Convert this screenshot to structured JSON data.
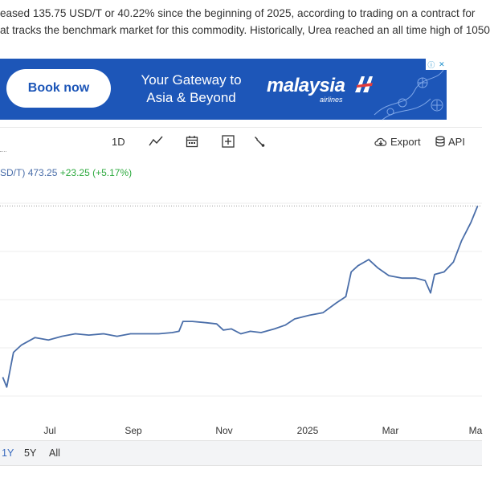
{
  "article": {
    "line1": "eased 135.75 USD/T or 40.22% since the beginning of 2025, according to trading on a contract for",
    "line2": "at tracks the benchmark market for this commodity. Historically, Urea reached an all time high of 1050"
  },
  "ad": {
    "button_label": "Book now",
    "tagline_line1": "Your Gateway to",
    "tagline_line2": "Asia & Beyond",
    "brand": "malaysia",
    "brand_sub": "airlines",
    "adchoices_icon": "info-close-icon",
    "colors": {
      "background": "#1d56b8",
      "button": "#ffffff"
    }
  },
  "toolbar": {
    "interval_label": "1D",
    "line_chart_icon": "line-chart-icon",
    "calendar_icon": "calendar-icon",
    "add_icon": "plus-box-icon",
    "settings_icon": "wrench-icon",
    "export_label": "Export",
    "api_label": "API"
  },
  "legend": {
    "symbol": "SD/T)",
    "last": "473.25",
    "change": "+23.25 (+5.17%)",
    "colors": {
      "line": "#4a6ea9",
      "positive": "#2eaa3f"
    }
  },
  "chart_data": {
    "type": "line",
    "x_tick_labels": [
      "Jul",
      "Sep",
      "Nov",
      "2025",
      "Mar",
      "Ma"
    ],
    "series": [
      {
        "color": "#4a6ea9",
        "points": [
          [
            "2024-05-22",
            335
          ],
          [
            "2024-05-25",
            327
          ],
          [
            "2024-05-30",
            355
          ],
          [
            "2024-06-05",
            361
          ],
          [
            "2024-06-15",
            367
          ],
          [
            "2024-06-25",
            365
          ],
          [
            "2024-07-05",
            368
          ],
          [
            "2024-07-15",
            370
          ],
          [
            "2024-07-25",
            369
          ],
          [
            "2024-08-05",
            370
          ],
          [
            "2024-08-15",
            368
          ],
          [
            "2024-08-25",
            370
          ],
          [
            "2024-09-05",
            370
          ],
          [
            "2024-09-15",
            370
          ],
          [
            "2024-09-25",
            371
          ],
          [
            "2024-09-30",
            372
          ],
          [
            "2024-10-03",
            380
          ],
          [
            "2024-10-10",
            380
          ],
          [
            "2024-10-20",
            379
          ],
          [
            "2024-10-28",
            378
          ],
          [
            "2024-11-02",
            373
          ],
          [
            "2024-11-08",
            374
          ],
          [
            "2024-11-15",
            370
          ],
          [
            "2024-11-22",
            372
          ],
          [
            "2024-11-30",
            371
          ],
          [
            "2024-12-10",
            374
          ],
          [
            "2024-12-18",
            377
          ],
          [
            "2024-12-25",
            382
          ],
          [
            "2025-01-05",
            385
          ],
          [
            "2025-01-15",
            387
          ],
          [
            "2025-01-25",
            395
          ],
          [
            "2025-02-01",
            400
          ],
          [
            "2025-02-05",
            420
          ],
          [
            "2025-02-10",
            425
          ],
          [
            "2025-02-18",
            430
          ],
          [
            "2025-02-25",
            423
          ],
          [
            "2025-03-05",
            417
          ],
          [
            "2025-03-15",
            415
          ],
          [
            "2025-03-25",
            415
          ],
          [
            "2025-04-01",
            413
          ],
          [
            "2025-04-05",
            403
          ],
          [
            "2025-04-08",
            418
          ],
          [
            "2025-04-15",
            420
          ],
          [
            "2025-04-22",
            428
          ],
          [
            "2025-04-28",
            445
          ],
          [
            "2025-05-05",
            460
          ],
          [
            "2025-05-10",
            473.25
          ]
        ]
      }
    ],
    "y_range": [
      310,
      480
    ],
    "reference_line": 473.25,
    "grid": "horizontal"
  },
  "range_buttons": [
    {
      "label": "1Y",
      "active": true
    },
    {
      "label": "5Y",
      "active": false
    },
    {
      "label": "All",
      "active": false
    }
  ]
}
